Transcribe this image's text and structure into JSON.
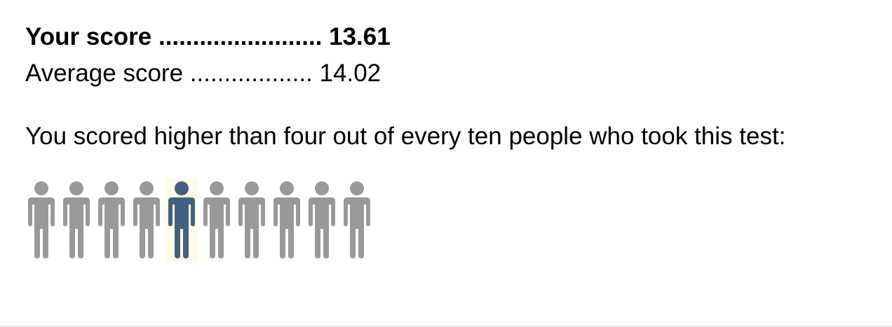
{
  "results": {
    "your_score_label": "Your score",
    "your_score_dots": "........................",
    "your_score_value": "13.61",
    "average_score_label": "Average score",
    "average_score_dots": "..................",
    "average_score_value": "14.02",
    "summary_text": "You scored higher than four out of every ten people who took this test:"
  },
  "people_graphic": {
    "count": 10,
    "highlight_index": 4,
    "icon_name": "person-icon",
    "colors": {
      "default": "#999999",
      "highlight": "#44607f",
      "highlight_bg": "#fffbea"
    }
  }
}
